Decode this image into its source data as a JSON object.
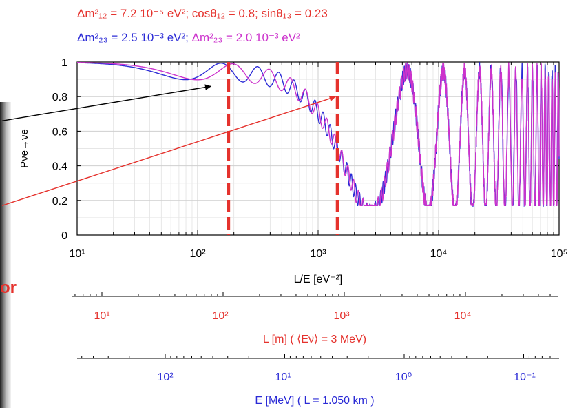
{
  "header": {
    "line1": "Δm²₁₂ = 7.2 10⁻⁵ eV²; cosθ₁₂ = 0.8; sinθ₁₃ = 0.23",
    "line2_blue": "Δm²₂₃ = 2.5 10⁻³ eV²;",
    "line2_magenta": "Δm²₂₃ = 2.0 10⁻³ eV²"
  },
  "side_text": "or",
  "colors": {
    "red": "#e5322d",
    "blue": "#2b2bd6",
    "magenta": "#cc33cc",
    "black": "#000000"
  },
  "chart_data": {
    "type": "line",
    "x_scale": "log",
    "xlim": [
      10,
      100000
    ],
    "ylim": [
      0,
      1
    ],
    "xlabel": "L/E [eV⁻²]",
    "ylabel": "Pνe→νe",
    "x_ticks": [
      "10¹",
      "10²",
      "10³",
      "10⁴",
      "10⁵"
    ],
    "y_ticks": [
      "0",
      "0.2",
      "0.4",
      "0.6",
      "0.8",
      "1"
    ],
    "grid": true,
    "series": [
      {
        "color": "#2b2bd6",
        "dm2_13": 0.0025,
        "dm2_12": 7.2e-05,
        "cos_theta12": 0.8,
        "sin_theta13": 0.23
      },
      {
        "color": "#cc33cc",
        "dm2_13": 0.002,
        "dm2_12": 7.2e-05,
        "cos_theta12": 0.8,
        "sin_theta13": 0.23
      }
    ],
    "vertical_markers_LE": [
      180,
      1450
    ],
    "annotations": [
      {
        "color": "#000000",
        "from": [
          3,
          0.66
        ],
        "to": [
          130,
          0.86
        ]
      },
      {
        "color": "#e5322d",
        "from": [
          3,
          0.17
        ],
        "to": [
          1400,
          0.8
        ]
      }
    ],
    "secondary_axes": [
      {
        "label": "L [m] ( ⟨Eν⟩ = 3 MeV)",
        "color": "#e5322d",
        "ticks": [
          "10¹",
          "10²",
          "10³",
          "10⁴"
        ]
      },
      {
        "label": "E [MeV] ( L = 1.050 km )",
        "color": "#2b2bd6",
        "ticks": [
          "10²",
          "10¹",
          "10⁰",
          "10⁻¹"
        ]
      }
    ]
  }
}
